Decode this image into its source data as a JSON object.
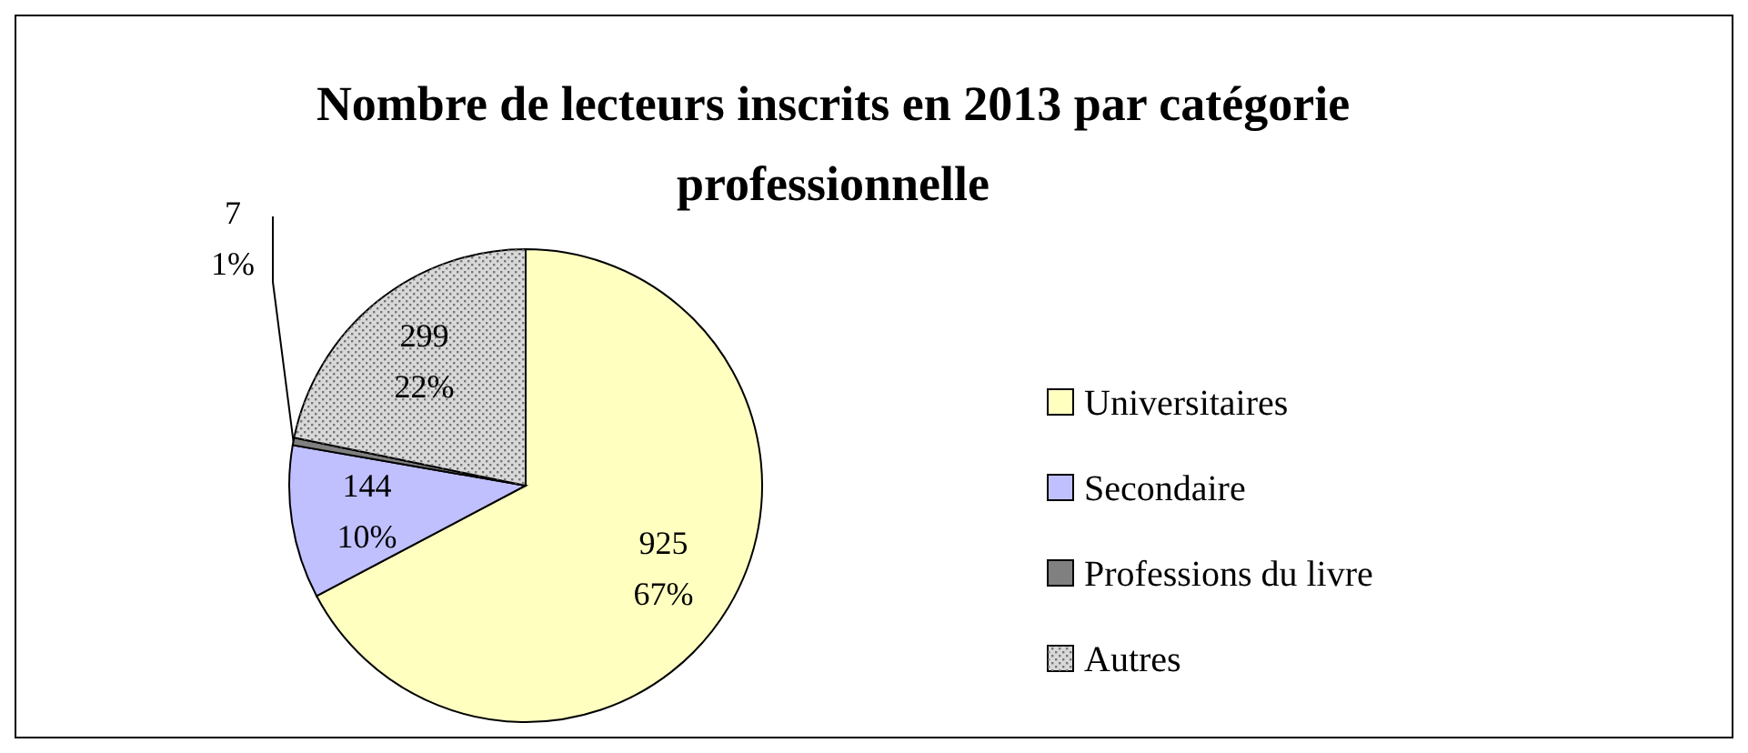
{
  "chart_data": {
    "type": "pie",
    "title": "Nombre de lecteurs inscrits en 2013 par catégorie professionnelle",
    "categories": [
      "Universitaires",
      "Secondaire",
      "Professions du livre",
      "Autres"
    ],
    "values": [
      925,
      144,
      7,
      299
    ],
    "colors": [
      "#ffffc0",
      "#c0c0ff",
      "#808080",
      "#d8d8d8"
    ],
    "value_labels": [
      "925\n67%",
      "144\n10%",
      "7\n1%",
      "299\n22%"
    ],
    "legend": "right"
  }
}
